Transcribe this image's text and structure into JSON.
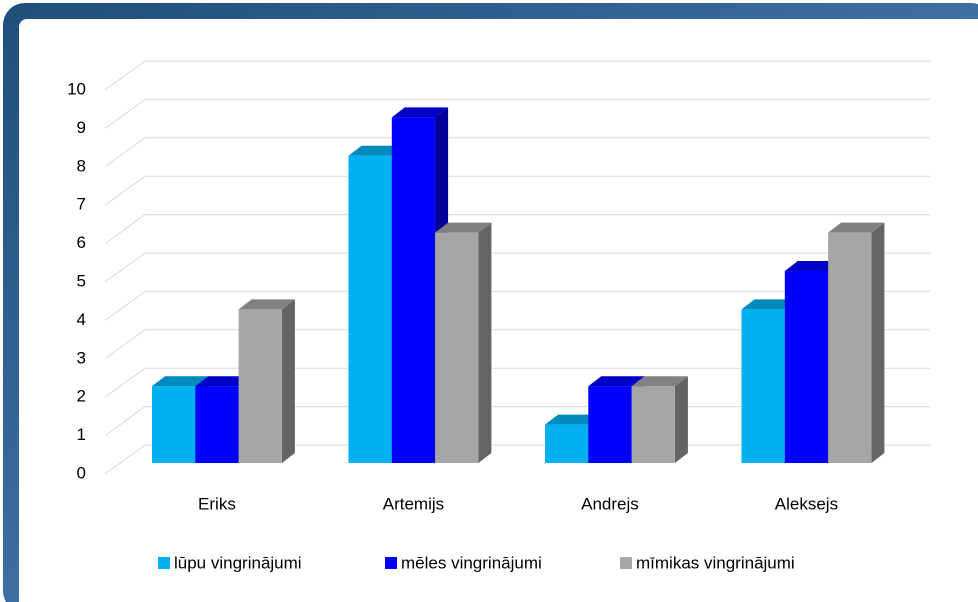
{
  "chart_data": {
    "type": "bar3d",
    "categories": [
      "Eriks",
      "Artemijs",
      "Andrejs",
      "Aleksejs"
    ],
    "series": [
      {
        "name": "lūpu vingrinājumi",
        "color": "#00b0f0",
        "values": [
          2,
          8,
          1,
          4
        ]
      },
      {
        "name": "mēles vingrinājumi",
        "color": "#0000ff",
        "values": [
          2,
          9,
          2,
          5
        ]
      },
      {
        "name": "mīmikas vingrinājumi",
        "color": "#a6a6a6",
        "values": [
          4,
          6,
          2,
          6
        ]
      }
    ],
    "ylim": [
      0,
      10
    ],
    "yticks": [
      0,
      1,
      2,
      3,
      4,
      5,
      6,
      7,
      8,
      9,
      10
    ],
    "grid": true,
    "legend": "bottom"
  }
}
